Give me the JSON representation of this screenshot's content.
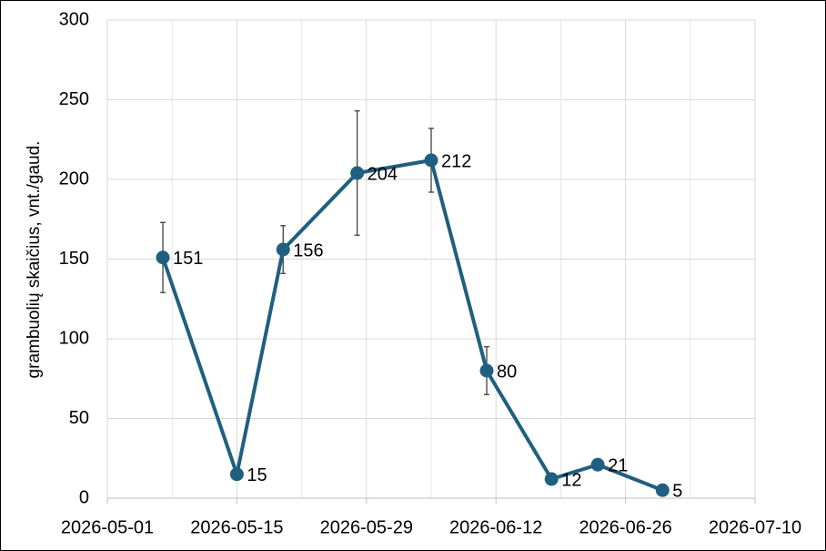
{
  "chart_data": {
    "type": "line",
    "y_label": "grambuolių skaičius, vnt./gaud.",
    "x": [
      "2026-05-07",
      "2026-05-15",
      "2026-05-20",
      "2026-05-28",
      "2026-06-05",
      "2026-06-11",
      "2026-06-18",
      "2026-06-23",
      "2026-06-30"
    ],
    "series": [
      {
        "color": "#1f5f7f",
        "values": [
          151,
          15,
          156,
          204,
          212,
          80,
          12,
          21,
          5
        ],
        "errors": [
          22,
          null,
          15,
          39,
          20,
          15,
          null,
          null,
          null
        ]
      }
    ],
    "xlim": [
      "2026-05-01",
      "2026-07-10"
    ],
    "xticks": [
      "2026-05-01",
      "2026-05-15",
      "2026-05-29",
      "2026-06-12",
      "2026-06-26",
      "2026-07-10"
    ],
    "ylim": [
      0,
      300
    ],
    "yticks": [
      0,
      50,
      100,
      150,
      200,
      250,
      300
    ],
    "grid": true
  }
}
